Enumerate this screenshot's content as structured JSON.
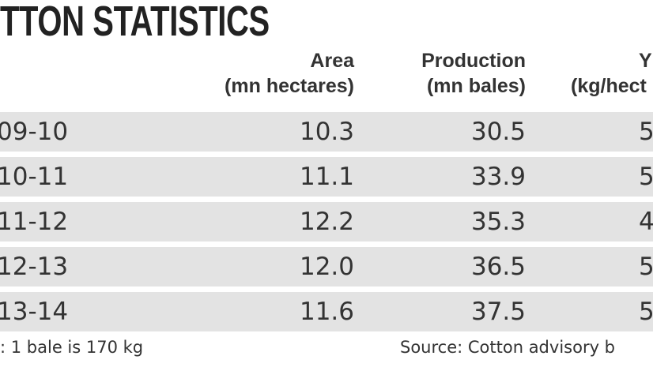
{
  "title": "TTON STATISTICS",
  "table": {
    "header": [
      [
        "Area",
        "(mn hectares)"
      ],
      [
        "Production",
        "(mn bales)"
      ],
      [
        "Y",
        "(kg/hect"
      ]
    ],
    "rows": [
      [
        "09-10",
        "10.3",
        "30.5",
        "5"
      ],
      [
        "10-11",
        "11.1",
        "33.9",
        "5"
      ],
      [
        "11-12",
        "12.2",
        "35.3",
        "4"
      ],
      [
        "12-13",
        "12.0",
        "36.5",
        "5"
      ],
      [
        "13-14",
        "11.6",
        "37.5",
        "5"
      ]
    ]
  },
  "footer": {
    "note": ": 1 bale is 170 kg",
    "source": "Source: Cotton advisory b"
  }
}
